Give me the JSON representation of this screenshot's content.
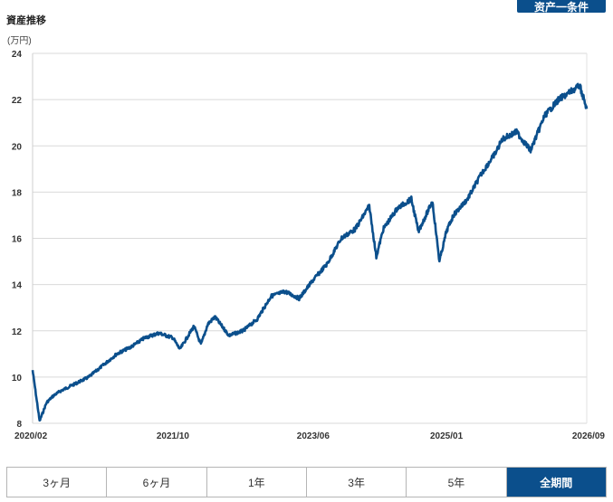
{
  "header": {
    "button_label": "资产一条件"
  },
  "chart_data": {
    "type": "line",
    "title": "資産推移",
    "unit_label": "(万円)",
    "ylim": [
      8,
      24
    ],
    "yticks": [
      8,
      10,
      12,
      14,
      16,
      18,
      20,
      22,
      24
    ],
    "x_range": [
      "2020/02",
      "2026/09"
    ],
    "xticks": [
      "2020/02",
      "2021/10",
      "2023/06",
      "2025/01",
      "2026/09"
    ],
    "grid": true,
    "line_color": "#0b4f8c",
    "series": [
      {
        "x": [
          "2020/02",
          "2020/03",
          "2020/04",
          "2020/05",
          "2020/06",
          "2020/08",
          "2020/10",
          "2020/12",
          "2021/02",
          "2021/04",
          "2021/06",
          "2021/08",
          "2021/10",
          "2021/11",
          "2022/01",
          "2022/02",
          "2022/03",
          "2022/04",
          "2022/06",
          "2022/08",
          "2022/10",
          "2022/12",
          "2023/02",
          "2023/04",
          "2023/06",
          "2023/08",
          "2023/10",
          "2023/12",
          "2024/02",
          "2024/03",
          "2024/04",
          "2024/06",
          "2024/08",
          "2024/09",
          "2024/11",
          "2024/12",
          "2025/01",
          "2025/02",
          "2025/04",
          "2025/06",
          "2025/08",
          "2025/09",
          "2025/11",
          "2026/01",
          "2026/03",
          "2026/05",
          "2026/07",
          "2026/08",
          "2026/09"
        ],
        "values": [
          10.3,
          8.1,
          8.9,
          9.2,
          9.4,
          9.7,
          10.0,
          10.5,
          11.0,
          11.3,
          11.7,
          11.9,
          11.7,
          11.2,
          12.2,
          11.4,
          12.3,
          12.6,
          11.8,
          12.0,
          12.5,
          13.5,
          13.7,
          13.4,
          14.2,
          14.9,
          16.0,
          16.4,
          17.4,
          15.2,
          16.4,
          17.3,
          17.7,
          16.3,
          17.6,
          15.0,
          16.3,
          17.0,
          17.7,
          18.8,
          19.7,
          20.3,
          20.6,
          19.8,
          21.3,
          22.0,
          22.4,
          22.6,
          21.6
        ]
      }
    ]
  },
  "tabs": [
    {
      "label": "3ヶ月",
      "active": false
    },
    {
      "label": "6ヶ月",
      "active": false
    },
    {
      "label": "1年",
      "active": false
    },
    {
      "label": "3年",
      "active": false
    },
    {
      "label": "5年",
      "active": false
    },
    {
      "label": "全期間",
      "active": true
    }
  ]
}
